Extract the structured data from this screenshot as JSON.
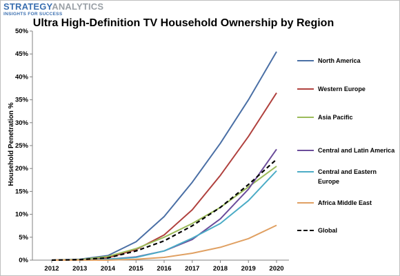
{
  "brand": {
    "name_a": "STRATEGY",
    "name_b": "ANALYTICS",
    "tagline": "INSIGHTS FOR SUCCESS",
    "color_a": "#3a6fb0",
    "color_b": "#9aa0a6"
  },
  "chart_data": {
    "type": "line",
    "title": "Ultra High-Definition TV Household Ownership by Region",
    "xlabel": "",
    "ylabel": "Household Penetration %",
    "x": [
      "2012",
      "2013",
      "2014",
      "2015",
      "2016",
      "2017",
      "2018",
      "2019",
      "2020"
    ],
    "ylim": [
      0,
      50
    ],
    "yticks": [
      "0%",
      "5%",
      "10%",
      "15%",
      "20%",
      "25%",
      "30%",
      "35%",
      "40%",
      "45%",
      "50%"
    ],
    "grid": false,
    "legend_position": "right",
    "series": [
      {
        "name": "North America",
        "color": "#4a6fa5",
        "dashed": false,
        "values": [
          0,
          0.2,
          1.0,
          4.0,
          9.5,
          17.0,
          25.5,
          35.0,
          45.5
        ]
      },
      {
        "name": "Western Europe",
        "color": "#b0413e",
        "dashed": false,
        "values": [
          0,
          0.1,
          0.5,
          2.3,
          5.5,
          11.0,
          18.5,
          27.0,
          36.5
        ]
      },
      {
        "name": "Asia Pacific",
        "color": "#9bbb59",
        "dashed": false,
        "values": [
          0,
          0.1,
          0.8,
          2.5,
          5.0,
          8.0,
          11.5,
          16.0,
          20.5
        ]
      },
      {
        "name": "Central and Latin America",
        "color": "#6b4c9a",
        "dashed": false,
        "values": [
          0,
          0,
          0.2,
          0.7,
          2.0,
          4.5,
          9.0,
          15.5,
          24.2
        ]
      },
      {
        "name": "Central and Eastern Europe",
        "color": "#4bacc6",
        "dashed": false,
        "values": [
          0,
          0,
          0.2,
          0.6,
          2.0,
          4.8,
          8.0,
          13.0,
          19.5
        ]
      },
      {
        "name": "Africa Middle East",
        "color": "#e0a062",
        "dashed": false,
        "values": [
          0,
          0,
          0,
          0.2,
          0.6,
          1.5,
          2.8,
          4.7,
          7.6
        ]
      },
      {
        "name": "Global",
        "color": "#000000",
        "dashed": true,
        "values": [
          0,
          0.1,
          0.5,
          2.0,
          4.2,
          7.5,
          11.5,
          16.5,
          22.0
        ]
      }
    ]
  }
}
